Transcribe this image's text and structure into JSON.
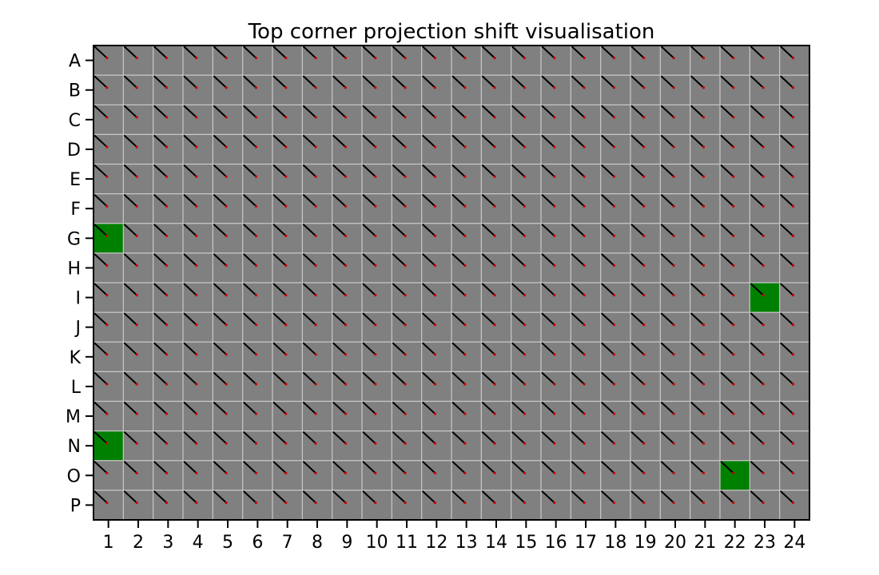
{
  "chart_data": {
    "type": "heatmap",
    "title": "Top corner projection shift visualisation",
    "rows": [
      "A",
      "B",
      "C",
      "D",
      "E",
      "F",
      "G",
      "H",
      "I",
      "J",
      "K",
      "L",
      "M",
      "N",
      "O",
      "P"
    ],
    "columns": [
      "1",
      "2",
      "3",
      "4",
      "5",
      "6",
      "7",
      "8",
      "9",
      "10",
      "11",
      "12",
      "13",
      "14",
      "15",
      "16",
      "17",
      "18",
      "19",
      "20",
      "21",
      "22",
      "23",
      "24"
    ],
    "default_cell_color": "#808080",
    "highlight_color": "#008000",
    "grid_color": "#c8c8c8",
    "shift_line_color": "#000000",
    "endpoint_color": "#cc0000",
    "highlighted_wells": [
      {
        "row": "G",
        "column": "1"
      },
      {
        "row": "I",
        "column": "23"
      },
      {
        "row": "N",
        "column": "1"
      },
      {
        "row": "O",
        "column": "22"
      }
    ],
    "shift_vector_fraction": {
      "dx": 0.45,
      "dy": 0.42
    }
  }
}
